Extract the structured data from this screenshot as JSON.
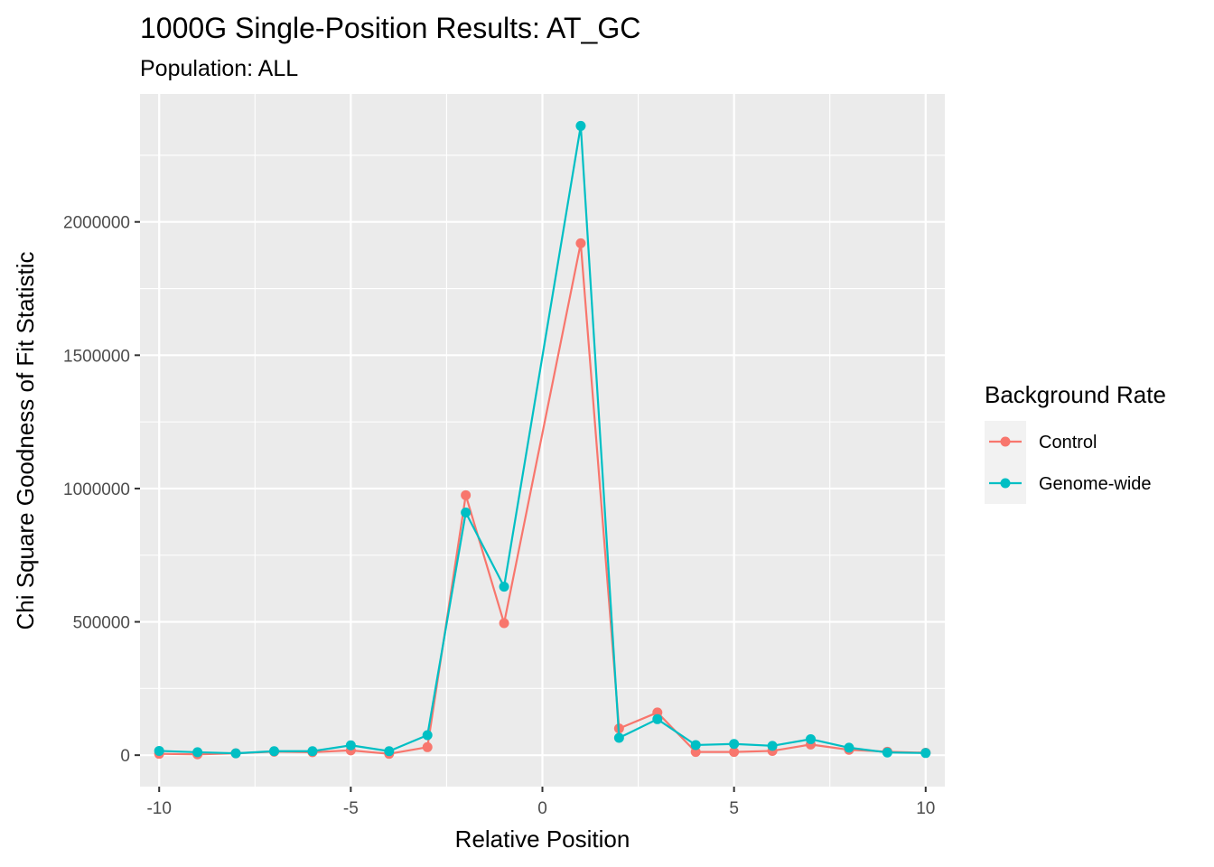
{
  "chart_data": {
    "type": "line",
    "title": "1000G Single-Position Results: AT_GC",
    "subtitle": "Population: ALL",
    "xlabel": "Relative Position",
    "ylabel": "Chi Square Goodness of Fit Statistic",
    "x": [
      -10,
      -9,
      -8,
      -7,
      -6,
      -5,
      -4,
      -3,
      -2,
      -1,
      1,
      2,
      3,
      4,
      5,
      6,
      7,
      8,
      9,
      10
    ],
    "xlim": [
      -10.5,
      10.5
    ],
    "ylim": [
      -118000,
      2480000
    ],
    "xticks": [
      -10,
      -5,
      0,
      5,
      10
    ],
    "xtick_labels": [
      "-10",
      "-5",
      "0",
      "5",
      "10"
    ],
    "yticks": [
      0,
      500000,
      1000000,
      1500000,
      2000000
    ],
    "ytick_labels": [
      "0",
      "500000",
      "1000000",
      "1500000",
      "2000000"
    ],
    "grid": true,
    "legend_title": "Background Rate",
    "legend_position": "right",
    "series": [
      {
        "name": "Control",
        "color": "#F8766D",
        "values": [
          5000,
          3000,
          7000,
          13000,
          11000,
          18000,
          5000,
          30000,
          975000,
          495000,
          1920000,
          100000,
          160000,
          12000,
          12000,
          16000,
          40000,
          20000,
          13000,
          9000
        ]
      },
      {
        "name": "Genome-wide",
        "color": "#00BFC4",
        "values": [
          16000,
          11000,
          7000,
          15000,
          15000,
          37000,
          15000,
          75000,
          910000,
          632000,
          2360000,
          65000,
          135000,
          38000,
          42000,
          35000,
          60000,
          28000,
          10000,
          8000
        ]
      }
    ]
  }
}
